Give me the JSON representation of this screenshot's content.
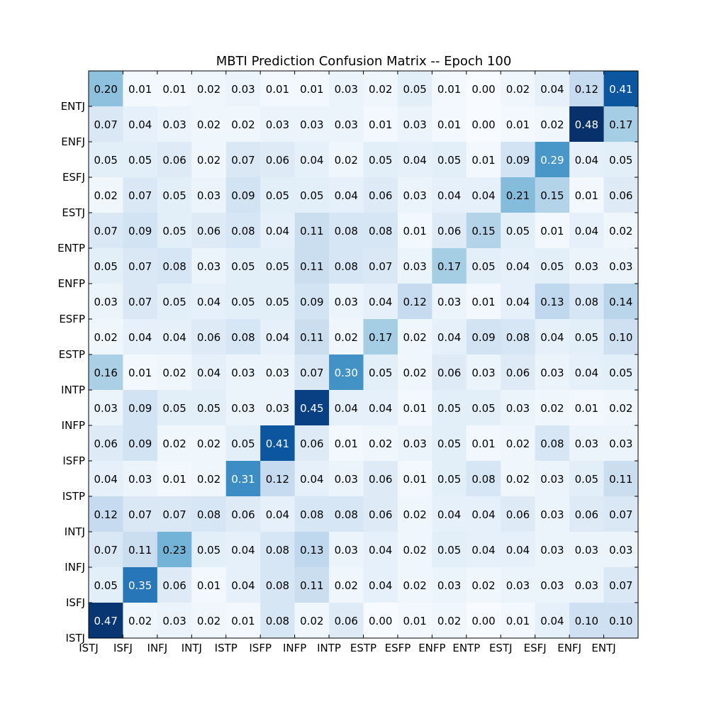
{
  "chart_data": {
    "type": "heatmap",
    "title": "MBTI Prediction Confusion Matrix -- Epoch 100",
    "xlabel": "",
    "ylabel": "",
    "colormap": "Blues",
    "vmin": 0,
    "vmax": 0.48,
    "x_tick_labels": [
      "ISTJ",
      "ISFJ",
      "INFJ",
      "INTJ",
      "ISTP",
      "ISFP",
      "INFP",
      "INTP",
      "ESTP",
      "ESFP",
      "ENFP",
      "ENTP",
      "ESTJ",
      "ESFJ",
      "ENFJ",
      "ENTJ"
    ],
    "y_tick_labels": [
      "ENTJ",
      "ENFJ",
      "ESFJ",
      "ESTJ",
      "ENTP",
      "ENFP",
      "ESFP",
      "ESTP",
      "INTP",
      "INFP",
      "ISFP",
      "ISTP",
      "INTJ",
      "INFJ",
      "ISFJ",
      "ISTJ"
    ],
    "matrix": [
      [
        0.2,
        0.01,
        0.01,
        0.02,
        0.03,
        0.01,
        0.01,
        0.03,
        0.02,
        0.05,
        0.01,
        0.0,
        0.02,
        0.04,
        0.12,
        0.41
      ],
      [
        0.07,
        0.04,
        0.03,
        0.02,
        0.02,
        0.03,
        0.03,
        0.03,
        0.01,
        0.03,
        0.01,
        0.0,
        0.01,
        0.02,
        0.48,
        0.17
      ],
      [
        0.05,
        0.05,
        0.06,
        0.02,
        0.07,
        0.06,
        0.04,
        0.02,
        0.05,
        0.04,
        0.05,
        0.01,
        0.09,
        0.29,
        0.04,
        0.05
      ],
      [
        0.02,
        0.07,
        0.05,
        0.03,
        0.09,
        0.05,
        0.05,
        0.04,
        0.06,
        0.03,
        0.04,
        0.04,
        0.21,
        0.15,
        0.01,
        0.06
      ],
      [
        0.07,
        0.09,
        0.05,
        0.06,
        0.08,
        0.04,
        0.11,
        0.08,
        0.08,
        0.01,
        0.06,
        0.15,
        0.05,
        0.01,
        0.04,
        0.02
      ],
      [
        0.05,
        0.07,
        0.08,
        0.03,
        0.05,
        0.05,
        0.11,
        0.08,
        0.07,
        0.03,
        0.17,
        0.05,
        0.04,
        0.05,
        0.03,
        0.03
      ],
      [
        0.03,
        0.07,
        0.05,
        0.04,
        0.05,
        0.05,
        0.09,
        0.03,
        0.04,
        0.12,
        0.03,
        0.01,
        0.04,
        0.13,
        0.08,
        0.14
      ],
      [
        0.02,
        0.04,
        0.04,
        0.06,
        0.08,
        0.04,
        0.11,
        0.02,
        0.17,
        0.02,
        0.04,
        0.09,
        0.08,
        0.04,
        0.05,
        0.1
      ],
      [
        0.16,
        0.01,
        0.02,
        0.04,
        0.03,
        0.03,
        0.07,
        0.3,
        0.05,
        0.02,
        0.06,
        0.03,
        0.06,
        0.03,
        0.04,
        0.05
      ],
      [
        0.03,
        0.09,
        0.05,
        0.05,
        0.03,
        0.03,
        0.45,
        0.04,
        0.04,
        0.01,
        0.05,
        0.05,
        0.03,
        0.02,
        0.01,
        0.02
      ],
      [
        0.06,
        0.09,
        0.02,
        0.02,
        0.05,
        0.41,
        0.06,
        0.01,
        0.02,
        0.03,
        0.05,
        0.01,
        0.02,
        0.08,
        0.03,
        0.03
      ],
      [
        0.04,
        0.03,
        0.01,
        0.02,
        0.31,
        0.12,
        0.04,
        0.03,
        0.06,
        0.01,
        0.05,
        0.08,
        0.02,
        0.03,
        0.05,
        0.11
      ],
      [
        0.12,
        0.07,
        0.07,
        0.08,
        0.06,
        0.04,
        0.08,
        0.08,
        0.06,
        0.02,
        0.04,
        0.04,
        0.06,
        0.03,
        0.06,
        0.07
      ],
      [
        0.07,
        0.11,
        0.23,
        0.05,
        0.04,
        0.08,
        0.13,
        0.03,
        0.04,
        0.02,
        0.05,
        0.04,
        0.04,
        0.03,
        0.03,
        0.03
      ],
      [
        0.05,
        0.35,
        0.06,
        0.01,
        0.04,
        0.08,
        0.11,
        0.02,
        0.04,
        0.02,
        0.03,
        0.02,
        0.03,
        0.03,
        0.03,
        0.07
      ],
      [
        0.47,
        0.02,
        0.03,
        0.02,
        0.01,
        0.08,
        0.02,
        0.06,
        0.0,
        0.01,
        0.02,
        0.0,
        0.01,
        0.04,
        0.1,
        0.1
      ]
    ],
    "grid": false,
    "legend": "none"
  }
}
